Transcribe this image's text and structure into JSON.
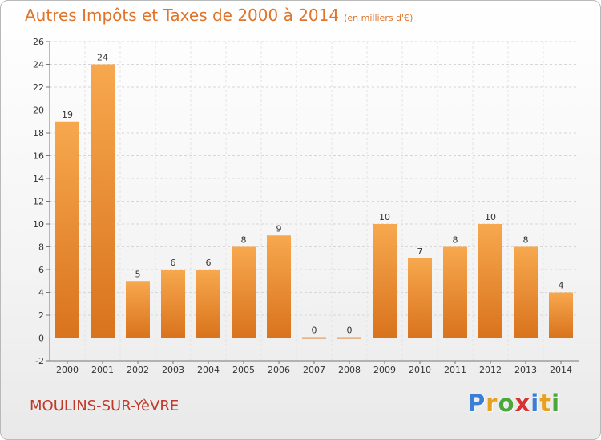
{
  "title": {
    "main": "Autres Impôts et Taxes de 2000 à 2014",
    "unit": "(en milliers d'€)"
  },
  "commune": "MOULINS-SUR-YèVRE",
  "logo": {
    "letters": [
      "P",
      "r",
      "o",
      "x",
      "i",
      "t",
      "i"
    ],
    "colors": [
      "#3a7fd5",
      "#e8a020",
      "#4aa83a",
      "#d93030",
      "#3a7fd5",
      "#e8a020",
      "#4aa83a"
    ]
  },
  "colors": {
    "bar_light": "#f7a84e",
    "bar_dark": "#d9731d",
    "title": "#e0742a",
    "commune": "#c0392b"
  },
  "chart_data": {
    "type": "bar",
    "categories": [
      "2000",
      "2001",
      "2002",
      "2003",
      "2004",
      "2005",
      "2006",
      "2007",
      "2008",
      "2009",
      "2010",
      "2011",
      "2012",
      "2013",
      "2014"
    ],
    "values": [
      19,
      24,
      5,
      6,
      6,
      8,
      9,
      0,
      0,
      10,
      7,
      8,
      10,
      8,
      4
    ],
    "data_labels": [
      "19",
      "24",
      "5",
      "6",
      "6",
      "8",
      "9",
      "0",
      "0",
      "10",
      "7",
      "8",
      "10",
      "8",
      "4"
    ],
    "title": "Autres Impôts et Taxes de 2000 à 2014",
    "xlabel": "",
    "ylabel": "",
    "ylim": [
      -2,
      26
    ],
    "yticks": [
      -2,
      0,
      2,
      4,
      6,
      8,
      10,
      12,
      14,
      16,
      18,
      20,
      22,
      24,
      26
    ],
    "ytick_labels": [
      "-2",
      "0",
      "2",
      "4",
      "6",
      "8",
      "10",
      "12",
      "14",
      "16",
      "18",
      "20",
      "22",
      "24",
      "26"
    ],
    "grid": true,
    "legend": "none"
  }
}
